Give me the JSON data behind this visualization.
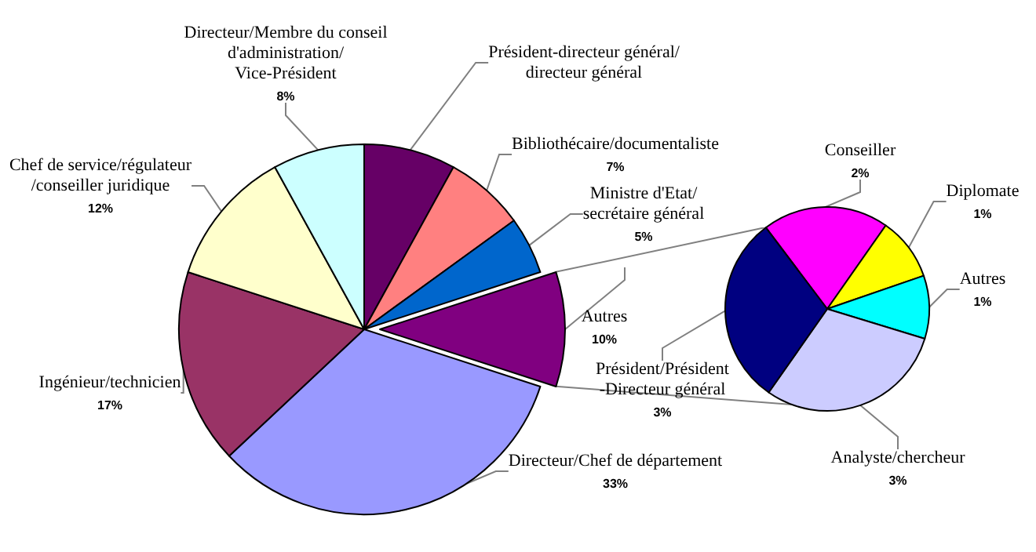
{
  "chart_data": [
    {
      "type": "pie",
      "categories": [
        "Président-directeur général/ directeur général",
        "Bibliothécaire/documentaliste",
        "Ministre d'Etat/ secrétaire général",
        "Autres",
        "Directeur/Chef de département",
        "Ingénieur/technicien",
        "Chef de service/régulateur /conseiller juridique",
        "Directeur/Membre du conseil d'administration/ Vice-Président"
      ],
      "values": [
        8,
        7,
        5,
        10,
        33,
        17,
        12,
        8
      ],
      "value_labels": [
        null,
        "7%",
        "5%",
        "10%",
        "33%",
        "17%",
        "12%",
        "8%"
      ],
      "colors": [
        "#660066",
        "#ff8080",
        "#0066cc",
        "#800080",
        "#9999ff",
        "#993366",
        "#ffffcc",
        "#ccffff"
      ]
    },
    {
      "type": "pie",
      "categories": [
        "Conseiller",
        "Diplomate",
        "Autres",
        "Analyste/chercheur",
        "Président/Président -Directeur général"
      ],
      "values": [
        2,
        1,
        1,
        3,
        3
      ],
      "value_labels": [
        "2%",
        "1%",
        "1%",
        "3%",
        "3%"
      ],
      "colors": [
        "#ff00ff",
        "#ffff00",
        "#00ffff",
        "#ccccff",
        "#000080"
      ]
    }
  ]
}
